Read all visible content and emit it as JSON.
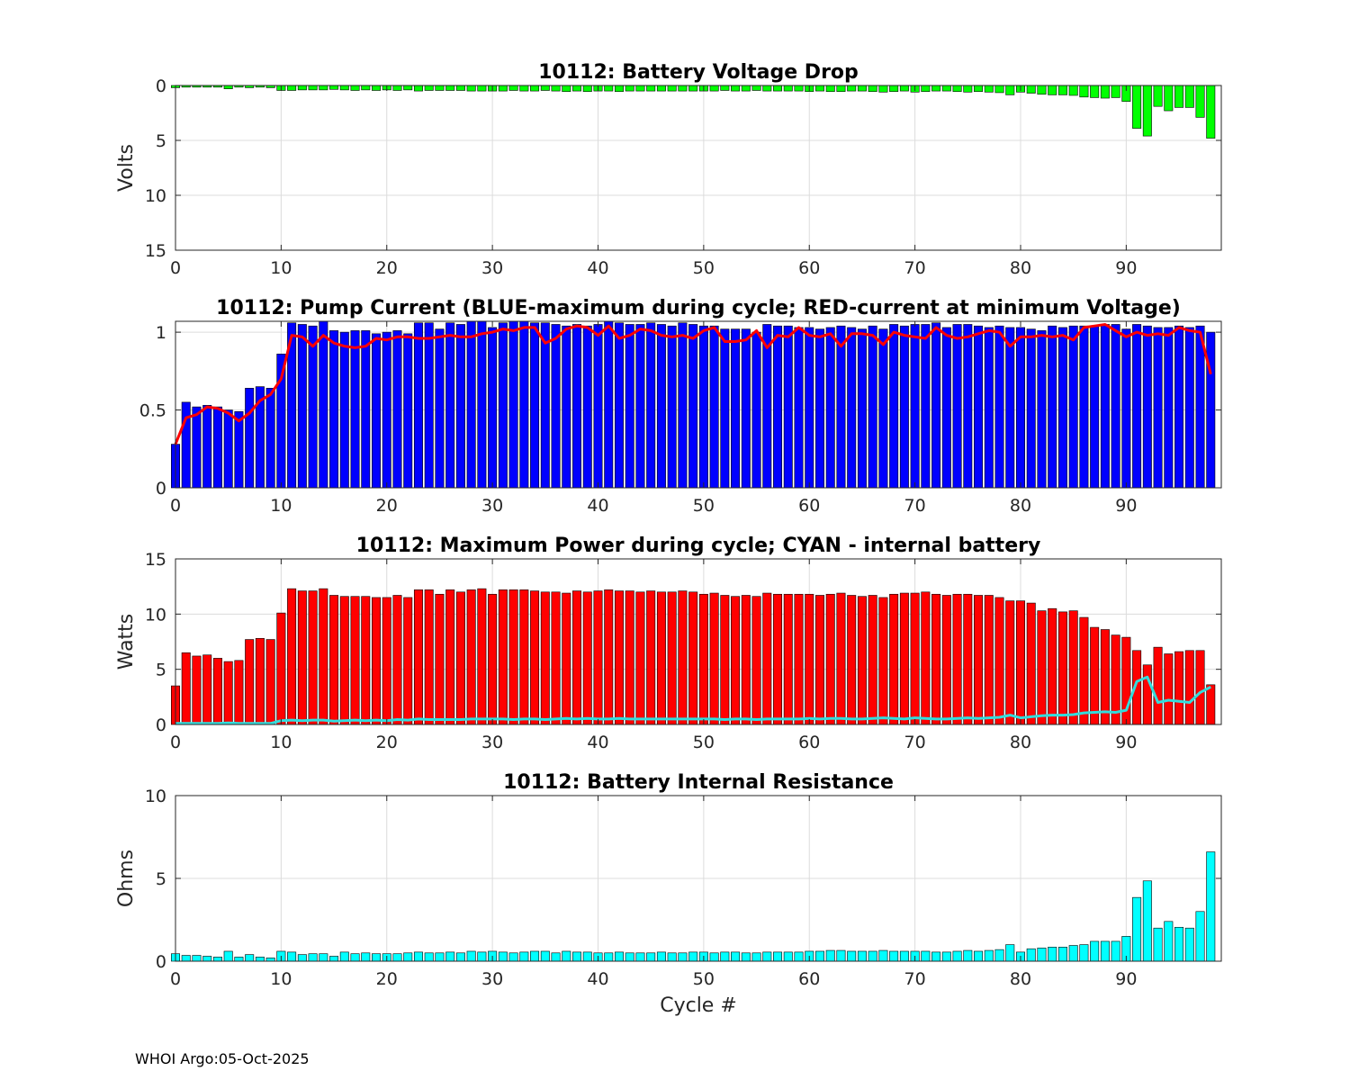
{
  "footer": "WHOI Argo:05-Oct-2025",
  "xlabel": "Cycle #",
  "chart_data": [
    {
      "type": "bar",
      "title": "10112: Battery Voltage Drop",
      "ylabel": "Volts",
      "xlim": [
        0,
        99
      ],
      "ylim": [
        0,
        15
      ],
      "y_reversed": true,
      "xticks": [
        0,
        10,
        20,
        30,
        40,
        50,
        60,
        70,
        80,
        90
      ],
      "yticks": [
        0,
        5,
        10,
        15
      ],
      "grid": true,
      "bar_color": "#00ff00",
      "x": [
        0,
        1,
        2,
        3,
        4,
        5,
        6,
        7,
        8,
        9,
        10,
        11,
        12,
        13,
        14,
        15,
        16,
        17,
        18,
        19,
        20,
        21,
        22,
        23,
        24,
        25,
        26,
        27,
        28,
        29,
        30,
        31,
        32,
        33,
        34,
        35,
        36,
        37,
        38,
        39,
        40,
        41,
        42,
        43,
        44,
        45,
        46,
        47,
        48,
        49,
        50,
        51,
        52,
        53,
        54,
        55,
        56,
        57,
        58,
        59,
        60,
        61,
        62,
        63,
        64,
        65,
        66,
        67,
        68,
        69,
        70,
        71,
        72,
        73,
        74,
        75,
        76,
        77,
        78,
        79,
        80,
        81,
        82,
        83,
        84,
        85,
        86,
        87,
        88,
        89,
        90,
        91,
        92,
        93,
        94,
        95,
        96,
        97,
        98
      ],
      "values": [
        0.2,
        0.15,
        0.15,
        0.15,
        0.15,
        0.3,
        0.15,
        0.2,
        0.15,
        0.2,
        0.45,
        0.45,
        0.4,
        0.4,
        0.4,
        0.35,
        0.4,
        0.45,
        0.4,
        0.45,
        0.4,
        0.45,
        0.4,
        0.5,
        0.45,
        0.45,
        0.45,
        0.45,
        0.5,
        0.5,
        0.5,
        0.5,
        0.45,
        0.5,
        0.5,
        0.45,
        0.5,
        0.55,
        0.5,
        0.55,
        0.5,
        0.5,
        0.55,
        0.5,
        0.5,
        0.5,
        0.5,
        0.5,
        0.5,
        0.5,
        0.5,
        0.5,
        0.45,
        0.5,
        0.5,
        0.45,
        0.5,
        0.5,
        0.5,
        0.5,
        0.55,
        0.5,
        0.55,
        0.55,
        0.5,
        0.5,
        0.55,
        0.6,
        0.55,
        0.5,
        0.6,
        0.55,
        0.5,
        0.5,
        0.55,
        0.6,
        0.55,
        0.6,
        0.65,
        0.85,
        0.6,
        0.7,
        0.8,
        0.85,
        0.85,
        0.9,
        1.05,
        1.1,
        1.15,
        1.1,
        1.45,
        3.9,
        4.6,
        1.9,
        2.3,
        2.0,
        2.0,
        2.9,
        4.8
      ]
    },
    {
      "type": "bar",
      "title": "10112: Pump Current (BLUE-maximum during cycle; RED-current at minimum Voltage)",
      "ylabel": "",
      "xlim": [
        0,
        99
      ],
      "ylim": [
        0,
        1.07
      ],
      "xticks": [
        0,
        10,
        20,
        30,
        40,
        50,
        60,
        70,
        80,
        90
      ],
      "yticks": [
        0,
        0.5,
        1
      ],
      "ytick_labels": [
        "0",
        "0.5",
        "1"
      ],
      "grid": true,
      "bar_color": "#0000ff",
      "line_color": "#ff0000",
      "x": [
        0,
        1,
        2,
        3,
        4,
        5,
        6,
        7,
        8,
        9,
        10,
        11,
        12,
        13,
        14,
        15,
        16,
        17,
        18,
        19,
        20,
        21,
        22,
        23,
        24,
        25,
        26,
        27,
        28,
        29,
        30,
        31,
        32,
        33,
        34,
        35,
        36,
        37,
        38,
        39,
        40,
        41,
        42,
        43,
        44,
        45,
        46,
        47,
        48,
        49,
        50,
        51,
        52,
        53,
        54,
        55,
        56,
        57,
        58,
        59,
        60,
        61,
        62,
        63,
        64,
        65,
        66,
        67,
        68,
        69,
        70,
        71,
        72,
        73,
        74,
        75,
        76,
        77,
        78,
        79,
        80,
        81,
        82,
        83,
        84,
        85,
        86,
        87,
        88,
        89,
        90,
        91,
        92,
        93,
        94,
        95,
        96,
        97,
        98
      ],
      "series": [
        {
          "role": "bars",
          "values": [
            0.28,
            0.55,
            0.52,
            0.53,
            0.52,
            0.5,
            0.49,
            0.64,
            0.65,
            0.64,
            0.86,
            1.06,
            1.05,
            1.04,
            1.07,
            1.01,
            1.0,
            1.01,
            1.01,
            0.99,
            1.0,
            1.01,
            0.99,
            1.06,
            1.06,
            1.02,
            1.06,
            1.05,
            1.07,
            1.07,
            1.03,
            1.06,
            1.07,
            1.07,
            1.06,
            1.06,
            1.05,
            1.04,
            1.05,
            1.04,
            1.05,
            1.07,
            1.06,
            1.05,
            1.05,
            1.06,
            1.05,
            1.04,
            1.06,
            1.05,
            1.04,
            1.04,
            1.02,
            1.02,
            1.02,
            1.0,
            1.05,
            1.04,
            1.04,
            1.03,
            1.03,
            1.02,
            1.03,
            1.04,
            1.03,
            1.02,
            1.04,
            1.02,
            1.05,
            1.04,
            1.05,
            1.05,
            1.06,
            1.03,
            1.05,
            1.05,
            1.04,
            1.03,
            1.04,
            1.03,
            1.03,
            1.02,
            1.01,
            1.04,
            1.03,
            1.04,
            1.04,
            1.04,
            1.05,
            1.05,
            1.02,
            1.05,
            1.04,
            1.03,
            1.03,
            1.04,
            1.03,
            1.04,
            1.0
          ]
        },
        {
          "role": "line",
          "values": [
            0.28,
            0.45,
            0.47,
            0.52,
            0.51,
            0.48,
            0.43,
            0.48,
            0.56,
            0.6,
            0.7,
            0.98,
            0.97,
            0.91,
            0.98,
            0.93,
            0.91,
            0.9,
            0.91,
            0.96,
            0.95,
            0.97,
            0.97,
            0.96,
            0.96,
            0.97,
            0.98,
            0.97,
            0.97,
            0.99,
            1.0,
            1.02,
            1.01,
            1.03,
            1.03,
            0.93,
            0.96,
            1.02,
            1.04,
            1.03,
            0.98,
            1.04,
            0.96,
            0.98,
            1.02,
            1.01,
            0.98,
            0.97,
            0.98,
            0.96,
            1.01,
            1.03,
            0.94,
            0.94,
            0.95,
            1.01,
            0.9,
            0.98,
            0.97,
            1.03,
            0.98,
            0.97,
            0.99,
            0.91,
            0.99,
            0.99,
            0.98,
            0.92,
            1.0,
            0.98,
            0.97,
            0.96,
            1.03,
            0.98,
            0.96,
            0.97,
            0.99,
            1.01,
            1.0,
            0.91,
            0.97,
            0.97,
            0.98,
            0.97,
            0.98,
            0.95,
            1.03,
            1.04,
            1.05,
            1.01,
            0.97,
            1.0,
            0.98,
            0.99,
            0.98,
            1.03,
            1.01,
            1.0,
            0.73
          ]
        }
      ]
    },
    {
      "type": "bar",
      "title": "10112: Maximum Power during cycle; CYAN - internal battery",
      "ylabel": "Watts",
      "xlim": [
        0,
        99
      ],
      "ylim": [
        0,
        15
      ],
      "xticks": [
        0,
        10,
        20,
        30,
        40,
        50,
        60,
        70,
        80,
        90
      ],
      "yticks": [
        0,
        5,
        10,
        15
      ],
      "grid": true,
      "bar_color": "#ff0000",
      "line_color": "#33dddd",
      "x": [
        0,
        1,
        2,
        3,
        4,
        5,
        6,
        7,
        8,
        9,
        10,
        11,
        12,
        13,
        14,
        15,
        16,
        17,
        18,
        19,
        20,
        21,
        22,
        23,
        24,
        25,
        26,
        27,
        28,
        29,
        30,
        31,
        32,
        33,
        34,
        35,
        36,
        37,
        38,
        39,
        40,
        41,
        42,
        43,
        44,
        45,
        46,
        47,
        48,
        49,
        50,
        51,
        52,
        53,
        54,
        55,
        56,
        57,
        58,
        59,
        60,
        61,
        62,
        63,
        64,
        65,
        66,
        67,
        68,
        69,
        70,
        71,
        72,
        73,
        74,
        75,
        76,
        77,
        78,
        79,
        80,
        81,
        82,
        83,
        84,
        85,
        86,
        87,
        88,
        89,
        90,
        91,
        92,
        93,
        94,
        95,
        96,
        97,
        98
      ],
      "series": [
        {
          "role": "bars",
          "values": [
            3.5,
            6.5,
            6.2,
            6.3,
            6.0,
            5.7,
            5.8,
            7.7,
            7.8,
            7.7,
            10.1,
            12.3,
            12.1,
            12.1,
            12.3,
            11.7,
            11.6,
            11.6,
            11.6,
            11.5,
            11.5,
            11.7,
            11.5,
            12.2,
            12.2,
            11.8,
            12.2,
            12.0,
            12.2,
            12.3,
            11.8,
            12.2,
            12.2,
            12.2,
            12.1,
            12.0,
            12.0,
            11.9,
            12.1,
            12.0,
            12.1,
            12.2,
            12.1,
            12.1,
            12.0,
            12.1,
            12.0,
            12.0,
            12.1,
            12.0,
            11.8,
            11.9,
            11.7,
            11.6,
            11.7,
            11.6,
            11.9,
            11.8,
            11.8,
            11.8,
            11.8,
            11.7,
            11.8,
            11.9,
            11.7,
            11.6,
            11.7,
            11.5,
            11.8,
            11.9,
            11.9,
            12.0,
            11.8,
            11.7,
            11.8,
            11.8,
            11.7,
            11.7,
            11.5,
            11.2,
            11.2,
            11.0,
            10.3,
            10.5,
            10.2,
            10.3,
            9.7,
            8.8,
            8.6,
            8.1,
            7.9,
            6.7,
            5.4,
            7.0,
            6.4,
            6.6,
            6.7,
            6.7,
            3.6
          ]
        },
        {
          "role": "line",
          "values": [
            0.1,
            0.1,
            0.1,
            0.1,
            0.1,
            0.15,
            0.1,
            0.1,
            0.1,
            0.1,
            0.35,
            0.4,
            0.35,
            0.4,
            0.4,
            0.3,
            0.35,
            0.4,
            0.35,
            0.4,
            0.35,
            0.45,
            0.4,
            0.5,
            0.45,
            0.45,
            0.45,
            0.45,
            0.5,
            0.5,
            0.5,
            0.5,
            0.45,
            0.5,
            0.5,
            0.45,
            0.5,
            0.55,
            0.5,
            0.55,
            0.5,
            0.5,
            0.55,
            0.5,
            0.5,
            0.5,
            0.5,
            0.5,
            0.5,
            0.5,
            0.5,
            0.5,
            0.45,
            0.5,
            0.5,
            0.45,
            0.5,
            0.5,
            0.5,
            0.5,
            0.55,
            0.5,
            0.55,
            0.55,
            0.5,
            0.5,
            0.55,
            0.6,
            0.55,
            0.5,
            0.6,
            0.55,
            0.5,
            0.5,
            0.55,
            0.6,
            0.55,
            0.6,
            0.65,
            0.85,
            0.6,
            0.7,
            0.8,
            0.85,
            0.85,
            0.9,
            1.05,
            1.1,
            1.15,
            1.1,
            1.3,
            3.9,
            4.3,
            2.0,
            2.2,
            2.1,
            2.0,
            2.9,
            3.4
          ]
        }
      ]
    },
    {
      "type": "bar",
      "title": "10112: Battery Internal Resistance",
      "ylabel": "Ohms",
      "xlim": [
        0,
        99
      ],
      "ylim": [
        0,
        10
      ],
      "xticks": [
        0,
        10,
        20,
        30,
        40,
        50,
        60,
        70,
        80,
        90
      ],
      "yticks": [
        0,
        5,
        10
      ],
      "grid": true,
      "bar_color": "#00ffff",
      "x": [
        0,
        1,
        2,
        3,
        4,
        5,
        6,
        7,
        8,
        9,
        10,
        11,
        12,
        13,
        14,
        15,
        16,
        17,
        18,
        19,
        20,
        21,
        22,
        23,
        24,
        25,
        26,
        27,
        28,
        29,
        30,
        31,
        32,
        33,
        34,
        35,
        36,
        37,
        38,
        39,
        40,
        41,
        42,
        43,
        44,
        45,
        46,
        47,
        48,
        49,
        50,
        51,
        52,
        53,
        54,
        55,
        56,
        57,
        58,
        59,
        60,
        61,
        62,
        63,
        64,
        65,
        66,
        67,
        68,
        69,
        70,
        71,
        72,
        73,
        74,
        75,
        76,
        77,
        78,
        79,
        80,
        81,
        82,
        83,
        84,
        85,
        86,
        87,
        88,
        89,
        90,
        91,
        92,
        93,
        94,
        95,
        96,
        97,
        98
      ],
      "values": [
        0.45,
        0.35,
        0.35,
        0.3,
        0.25,
        0.6,
        0.25,
        0.4,
        0.25,
        0.2,
        0.6,
        0.55,
        0.4,
        0.45,
        0.45,
        0.3,
        0.55,
        0.45,
        0.5,
        0.45,
        0.45,
        0.45,
        0.5,
        0.55,
        0.5,
        0.5,
        0.55,
        0.5,
        0.6,
        0.55,
        0.6,
        0.55,
        0.5,
        0.55,
        0.6,
        0.6,
        0.5,
        0.6,
        0.55,
        0.55,
        0.5,
        0.5,
        0.55,
        0.5,
        0.5,
        0.5,
        0.55,
        0.5,
        0.5,
        0.55,
        0.55,
        0.5,
        0.55,
        0.55,
        0.5,
        0.5,
        0.55,
        0.55,
        0.55,
        0.55,
        0.6,
        0.6,
        0.65,
        0.65,
        0.6,
        0.6,
        0.6,
        0.65,
        0.6,
        0.6,
        0.6,
        0.6,
        0.55,
        0.55,
        0.6,
        0.65,
        0.6,
        0.65,
        0.7,
        1.0,
        0.55,
        0.75,
        0.8,
        0.85,
        0.85,
        0.95,
        1.0,
        1.2,
        1.2,
        1.2,
        1.5,
        3.85,
        4.85,
        2.0,
        2.4,
        2.05,
        2.0,
        3.0,
        6.6
      ]
    }
  ]
}
